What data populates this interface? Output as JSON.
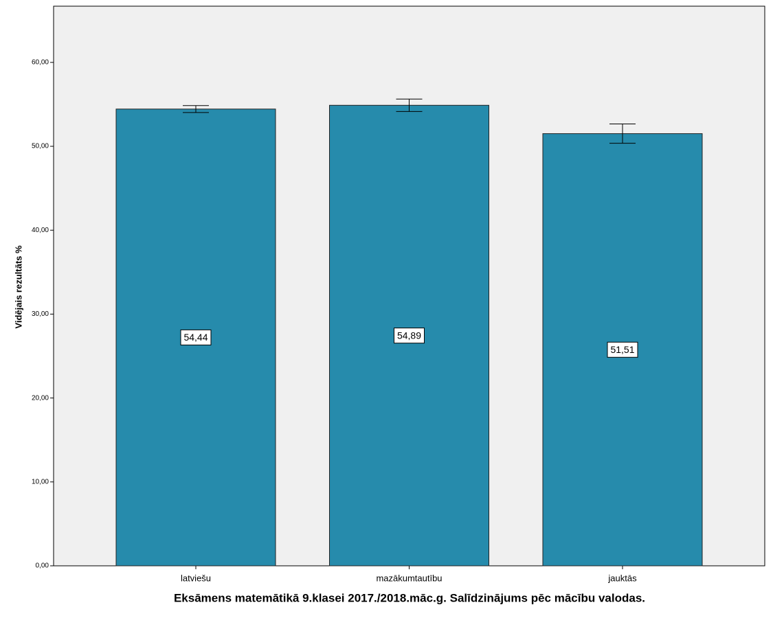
{
  "chart_data": {
    "type": "bar",
    "title": "Eksāmens matemātikā 9.klasei 2017./2018.māc.g. Salīdzinājums pēc mācību valodas.",
    "y_label": "Vidējais rezultāts %",
    "categories": [
      "latviešu",
      "mazākumtautību",
      "jauktās"
    ],
    "values": [
      54.44,
      54.89,
      51.51
    ],
    "value_labels": [
      "54,44",
      "54,89",
      "51,51"
    ],
    "errors": [
      0.41,
      0.74,
      1.15
    ],
    "color": "#268bac",
    "ylim": [
      0,
      66.7
    ],
    "yticks": [
      {
        "value": 0,
        "label": "0,00"
      },
      {
        "value": 10,
        "label": "10,00"
      },
      {
        "value": 20,
        "label": "20,00"
      },
      {
        "value": 30,
        "label": "30,00"
      },
      {
        "value": 40,
        "label": "40,00"
      },
      {
        "value": 50,
        "label": "50,00"
      },
      {
        "value": 60,
        "label": "60,00"
      }
    ]
  }
}
